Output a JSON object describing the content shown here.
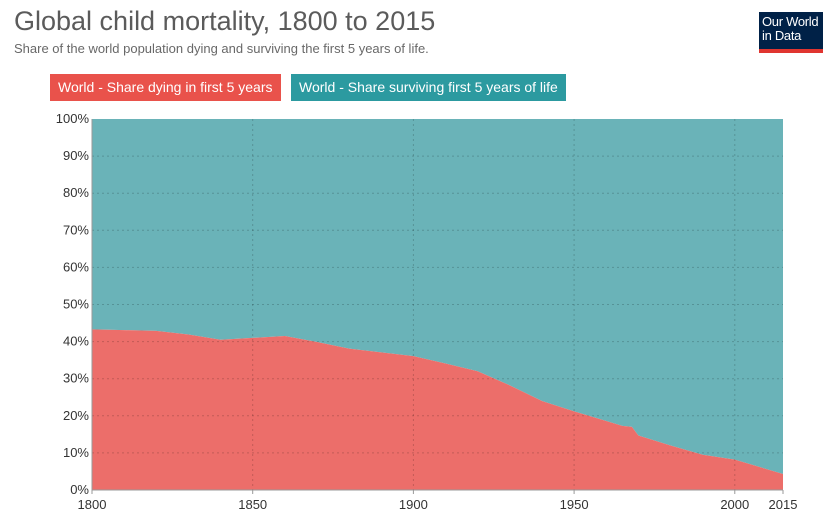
{
  "header": {
    "title": "Global child mortality, 1800 to 2015",
    "subtitle": "Share of the world population dying and surviving the first 5 years of life."
  },
  "logo": {
    "line1": "Our World",
    "line2": "in Data"
  },
  "legend": {
    "dying": "World - Share dying in first 5 years",
    "surviving": "World - Share surviving first 5 years of life"
  },
  "colors": {
    "dying": "#ec6e6a",
    "surviving": "#6ab3b8",
    "legend_dying": "#e9524b",
    "legend_surviving": "#2c9aa0",
    "logo_bg": "#002147",
    "logo_accent": "#e03530"
  },
  "chart_data": {
    "type": "area",
    "stacked": true,
    "title": "Global child mortality, 1800 to 2015",
    "subtitle": "Share of the world population dying and surviving the first 5 years of life.",
    "xlabel": "",
    "ylabel": "",
    "xlim": [
      1800,
      2015
    ],
    "ylim": [
      0,
      100
    ],
    "grid": true,
    "legend_position": "top-left",
    "x": [
      1800,
      1810,
      1820,
      1830,
      1840,
      1850,
      1860,
      1870,
      1880,
      1890,
      1900,
      1910,
      1920,
      1930,
      1940,
      1950,
      1960,
      1965,
      1968,
      1970,
      1980,
      1990,
      2000,
      2010,
      2015
    ],
    "series": [
      {
        "name": "World - Share dying in first 5 years",
        "values": [
          43.3,
          43.1,
          42.9,
          41.9,
          40.5,
          41.0,
          41.5,
          39.9,
          38.1,
          37.1,
          36.1,
          34.1,
          32.0,
          28.2,
          24.0,
          21.2,
          18.6,
          17.3,
          17.0,
          14.7,
          12.0,
          9.5,
          8.2,
          5.6,
          4.3
        ]
      },
      {
        "name": "World - Share surviving first 5 years of life",
        "values": [
          56.7,
          56.9,
          57.1,
          58.1,
          59.5,
          59.0,
          58.5,
          60.1,
          61.9,
          62.9,
          63.9,
          65.9,
          68.0,
          71.8,
          76.0,
          78.8,
          81.4,
          82.7,
          83.0,
          85.3,
          88.0,
          90.5,
          91.8,
          94.4,
          95.7
        ]
      }
    ],
    "y_ticks": [
      "0%",
      "10%",
      "20%",
      "30%",
      "40%",
      "50%",
      "60%",
      "70%",
      "80%",
      "90%",
      "100%"
    ],
    "y_tick_values": [
      0,
      10,
      20,
      30,
      40,
      50,
      60,
      70,
      80,
      90,
      100
    ],
    "x_ticks": [
      "1800",
      "1850",
      "1900",
      "1950",
      "2000",
      "2015"
    ],
    "x_tick_values": [
      1800,
      1850,
      1900,
      1950,
      2000,
      2015
    ]
  }
}
